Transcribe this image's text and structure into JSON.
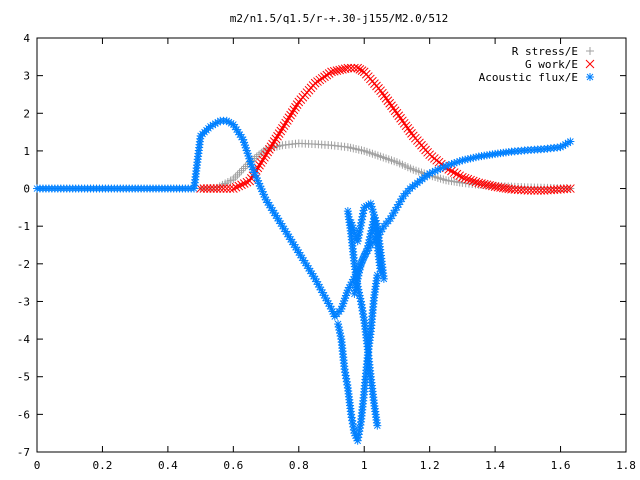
{
  "chart_data": {
    "type": "scatter",
    "title": "m2/n1.5/q1.5/r-+.30-j155/M2.0/512",
    "xlabel": "",
    "ylabel": "",
    "xlim": [
      0,
      1.8
    ],
    "ylim": [
      -7,
      4
    ],
    "x_ticks": [
      "0",
      "0.2",
      "0.4",
      "0.6",
      "0.8",
      "1",
      "1.2",
      "1.4",
      "1.6",
      "1.8"
    ],
    "y_ticks": [
      "4",
      "3",
      "2",
      "1",
      "0",
      "-1",
      "-2",
      "-3",
      "-4",
      "-5",
      "-6",
      "-7"
    ],
    "legend_position": "top-right",
    "grid": false,
    "series": [
      {
        "name": "R stress/E",
        "marker": "plus",
        "color": "#a0a0a0",
        "x": [
          0.5,
          0.55,
          0.6,
          0.65,
          0.7,
          0.75,
          0.8,
          0.85,
          0.9,
          0.95,
          1.0,
          1.05,
          1.1,
          1.15,
          1.2,
          1.25,
          1.3,
          1.35,
          1.4,
          1.45,
          1.5,
          1.55,
          1.6,
          1.63
        ],
        "y": [
          0.0,
          0.02,
          0.25,
          0.7,
          1.05,
          1.15,
          1.2,
          1.18,
          1.15,
          1.1,
          1.0,
          0.85,
          0.7,
          0.5,
          0.35,
          0.22,
          0.15,
          0.1,
          0.07,
          0.05,
          0.03,
          0.02,
          0.01,
          0.0
        ]
      },
      {
        "name": "G work/E",
        "marker": "cross",
        "color": "#ff0000",
        "x": [
          0.5,
          0.55,
          0.6,
          0.65,
          0.7,
          0.75,
          0.8,
          0.85,
          0.9,
          0.95,
          0.98,
          1.0,
          1.05,
          1.1,
          1.15,
          1.2,
          1.25,
          1.3,
          1.35,
          1.4,
          1.45,
          1.5,
          1.55,
          1.6,
          1.63
        ],
        "y": [
          0.0,
          0.0,
          0.0,
          0.2,
          0.9,
          1.6,
          2.3,
          2.8,
          3.1,
          3.2,
          3.2,
          3.1,
          2.6,
          2.0,
          1.4,
          0.9,
          0.55,
          0.3,
          0.15,
          0.05,
          -0.02,
          -0.05,
          -0.05,
          -0.02,
          0.0
        ]
      },
      {
        "name": "Acoustic flux/E",
        "marker": "star",
        "color": "#0080ff",
        "x": [
          0.0,
          0.1,
          0.2,
          0.3,
          0.4,
          0.48,
          0.5,
          0.53,
          0.56,
          0.58,
          0.6,
          0.63,
          0.66,
          0.7,
          0.75,
          0.8,
          0.85,
          0.9,
          0.91,
          0.93,
          0.95,
          0.98,
          1.0,
          1.02,
          1.04,
          1.06,
          1.08,
          1.1,
          1.12,
          1.14,
          1.17,
          1.2,
          1.25,
          1.3,
          1.35,
          1.4,
          1.45,
          1.5,
          1.55,
          1.6,
          1.63,
          0.92,
          0.93,
          0.94,
          0.95,
          0.96,
          0.97,
          0.98,
          0.99,
          1.0,
          1.01,
          1.02,
          1.03,
          1.04,
          0.95,
          0.96,
          0.97,
          0.98,
          0.99,
          1.0,
          1.01,
          1.02,
          1.03,
          1.04,
          0.96,
          0.98,
          1.0,
          1.02,
          1.04,
          1.06,
          0.97,
          0.99,
          1.01,
          1.03,
          1.05
        ],
        "y": [
          0.0,
          0.0,
          0.0,
          0.0,
          0.0,
          0.0,
          1.4,
          1.65,
          1.8,
          1.8,
          1.7,
          1.3,
          0.5,
          -0.3,
          -1.0,
          -1.7,
          -2.4,
          -3.2,
          -3.4,
          -3.2,
          -2.7,
          -2.2,
          -1.8,
          -1.5,
          -1.3,
          -1.0,
          -0.8,
          -0.5,
          -0.2,
          0.0,
          0.2,
          0.4,
          0.6,
          0.75,
          0.85,
          0.92,
          0.98,
          1.02,
          1.05,
          1.1,
          1.25,
          -3.6,
          -4.0,
          -4.8,
          -5.3,
          -6.0,
          -6.5,
          -6.7,
          -6.2,
          -5.4,
          -4.5,
          -3.8,
          -2.9,
          -2.3,
          -0.6,
          -1.2,
          -2.0,
          -2.6,
          -3.0,
          -3.5,
          -4.2,
          -5.0,
          -5.7,
          -6.3,
          -0.9,
          -1.4,
          -0.5,
          -0.4,
          -1.0,
          -2.4,
          -2.8,
          -2.0,
          -1.6,
          -0.8,
          -2.2
        ]
      }
    ]
  }
}
